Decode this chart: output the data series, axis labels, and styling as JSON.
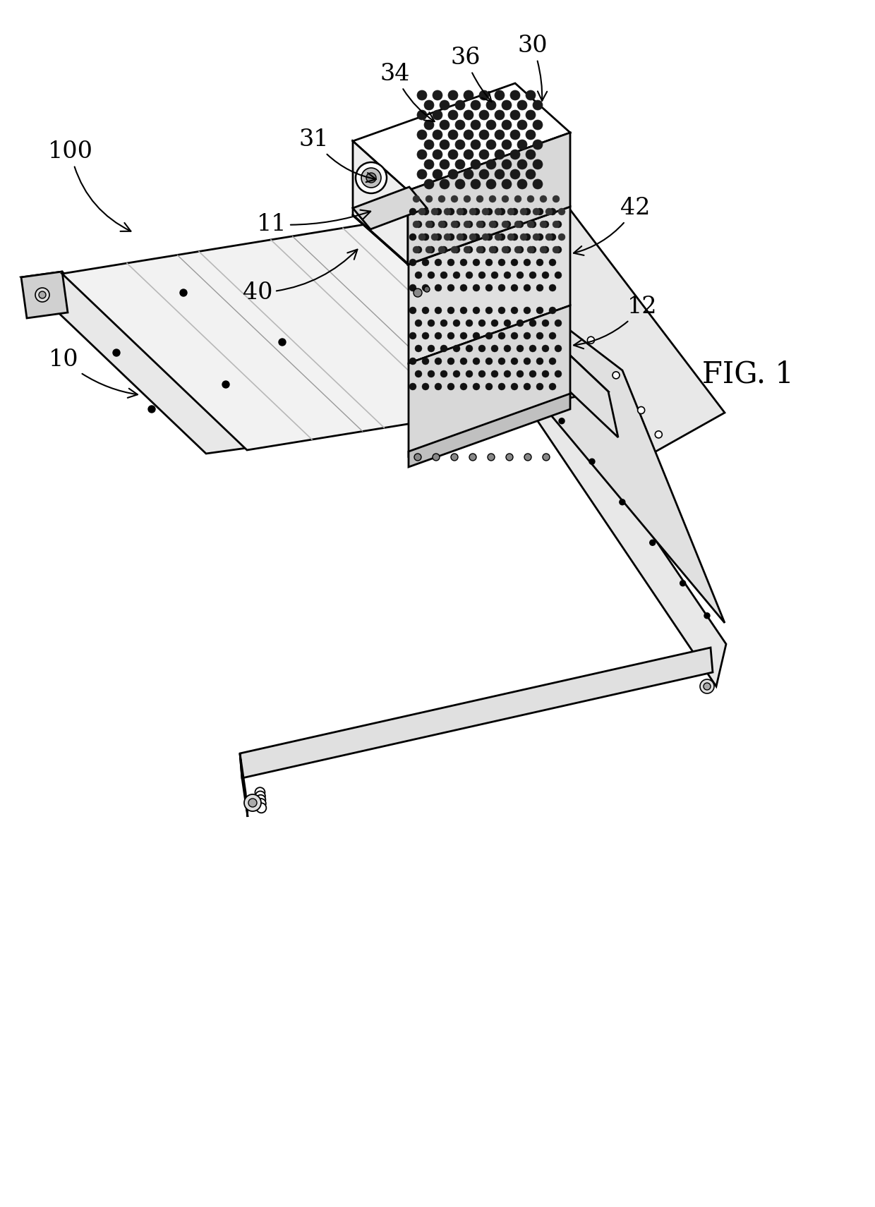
{
  "bg_color": "#ffffff",
  "fig_width": 12.4,
  "fig_height": 17.11,
  "lw_main": 2.0,
  "lw_thin": 1.0,
  "lw_thick": 2.5,
  "chassis_top_color": "#f2f2f2",
  "chassis_right_color": "#e0e0e0",
  "chassis_dark": "#c8c8c8",
  "module_light": "#f5f5f5",
  "module_mid": "#e8e8e8",
  "module_dark": "#d0d0d0",
  "hatch_dark": "#2a2a2a",
  "bracket_color": "#d8d8d8"
}
